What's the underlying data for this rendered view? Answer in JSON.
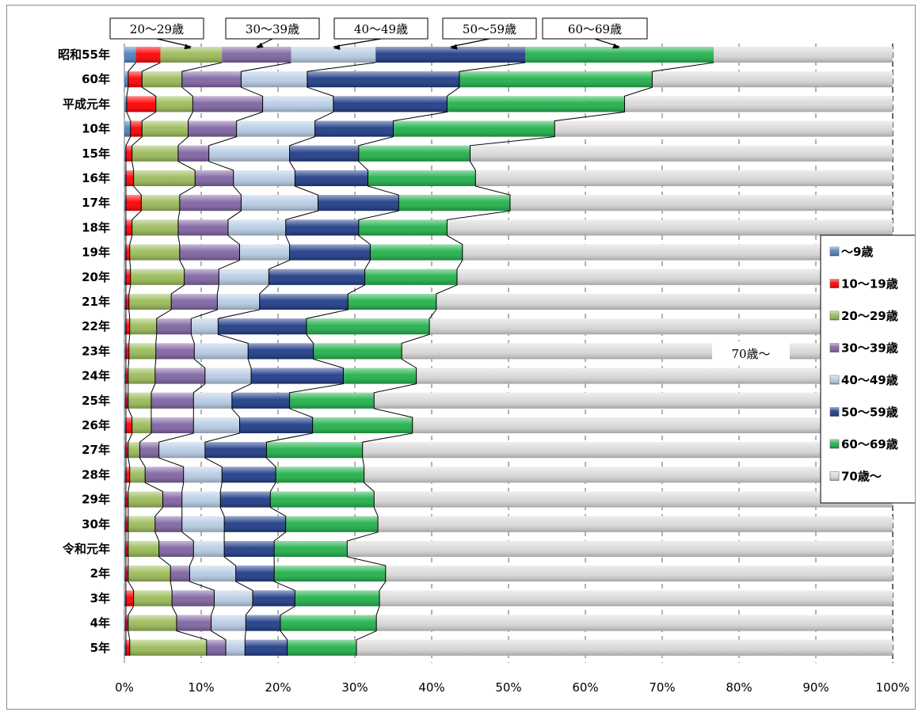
{
  "chart_data": {
    "type": "bar",
    "stacked": "percent",
    "orientation": "horizontal",
    "categories": [
      "昭和55年",
      "60年",
      "平成元年",
      "10年",
      "15年",
      "16年",
      "17年",
      "18年",
      "19年",
      "20年",
      "21年",
      "22年",
      "23年",
      "24年",
      "25年",
      "26年",
      "27年",
      "28年",
      "29年",
      "30年",
      "令和元年",
      "2年",
      "3年",
      "4年",
      "5年"
    ],
    "series": [
      {
        "name": "～9歳",
        "color": "#4f81bd",
        "values": [
          1.5,
          0.5,
          0.3,
          0.8,
          0.2,
          0.2,
          0.2,
          0.2,
          0.2,
          0.2,
          0.2,
          0.2,
          0.2,
          0.2,
          0.2,
          0.2,
          0.2,
          0.2,
          0.2,
          0.2,
          0.2,
          0.2,
          0.2,
          0.2,
          0.2
        ]
      },
      {
        "name": "10～19歳",
        "color": "#ff0000",
        "values": [
          3.2,
          1.8,
          3.8,
          1.5,
          0.8,
          1.0,
          2.0,
          0.8,
          0.5,
          0.6,
          0.4,
          0.5,
          0.4,
          0.3,
          0.3,
          0.8,
          0.3,
          0.5,
          0.3,
          0.3,
          0.3,
          0.3,
          1.0,
          0.3,
          0.5
        ]
      },
      {
        "name": "20～29歳",
        "color": "#9bbb59",
        "values": [
          8.0,
          5.2,
          4.8,
          6.0,
          6.0,
          8.0,
          5.0,
          6.0,
          6.5,
          7.0,
          5.5,
          3.5,
          3.5,
          3.5,
          3.0,
          2.5,
          1.5,
          2.0,
          4.5,
          3.5,
          4.0,
          5.5,
          5.0,
          6.3,
          10.0
        ]
      },
      {
        "name": "30～39歳",
        "color": "#8064a2",
        "values": [
          9.0,
          7.7,
          9.1,
          6.3,
          4.0,
          5.0,
          8.0,
          6.5,
          7.8,
          4.5,
          6.0,
          4.5,
          5.0,
          6.5,
          5.5,
          5.5,
          2.5,
          5.0,
          2.5,
          3.5,
          4.5,
          2.5,
          5.5,
          4.5,
          2.5
        ]
      },
      {
        "name": "40～49歳",
        "color": "#b9cde5",
        "values": [
          11.0,
          8.6,
          9.2,
          10.2,
          10.5,
          8.0,
          10.0,
          7.5,
          6.5,
          6.5,
          5.5,
          3.5,
          7.0,
          6.0,
          5.0,
          6.0,
          6.0,
          5.0,
          5.0,
          5.5,
          4.0,
          6.0,
          5.0,
          4.5,
          2.5
        ]
      },
      {
        "name": "50～59歳",
        "color": "#1f3c88",
        "values": [
          19.5,
          19.8,
          14.8,
          10.2,
          9.0,
          9.5,
          10.5,
          9.5,
          10.5,
          12.5,
          11.5,
          11.5,
          8.5,
          12.0,
          7.5,
          9.5,
          8.0,
          7.0,
          6.5,
          8.0,
          6.5,
          5.0,
          5.5,
          4.5,
          5.5
        ]
      },
      {
        "name": "60～69歳",
        "color": "#21b14b",
        "values": [
          24.5,
          25.1,
          23.1,
          21.0,
          14.5,
          14.0,
          14.5,
          11.5,
          12.0,
          12.0,
          11.5,
          16.0,
          11.5,
          9.5,
          11.0,
          13.0,
          12.5,
          11.5,
          13.5,
          12.0,
          9.5,
          14.5,
          11.0,
          12.5,
          9.0
        ]
      },
      {
        "name": "70歳～",
        "color": "#d9d9d9",
        "values": [
          23.3,
          31.3,
          34.9,
          44.0,
          55.0,
          54.3,
          49.8,
          58.0,
          56.0,
          56.7,
          59.4,
          60.3,
          63.9,
          62.0,
          67.5,
          62.5,
          69.0,
          68.3,
          67.5,
          67.0,
          71.0,
          66.0,
          66.8,
          67.2,
          69.8
        ]
      }
    ],
    "xlim": [
      0,
      100
    ],
    "xticks": [
      "0%",
      "10%",
      "20%",
      "30%",
      "40%",
      "50%",
      "60%",
      "70%",
      "80%",
      "90%",
      "100%"
    ],
    "annotations": [
      "20～29歳",
      "30～39歳",
      "40～49歳",
      "50～59歳",
      "60～69歳",
      "70歳～"
    ],
    "legend_position": "right"
  }
}
